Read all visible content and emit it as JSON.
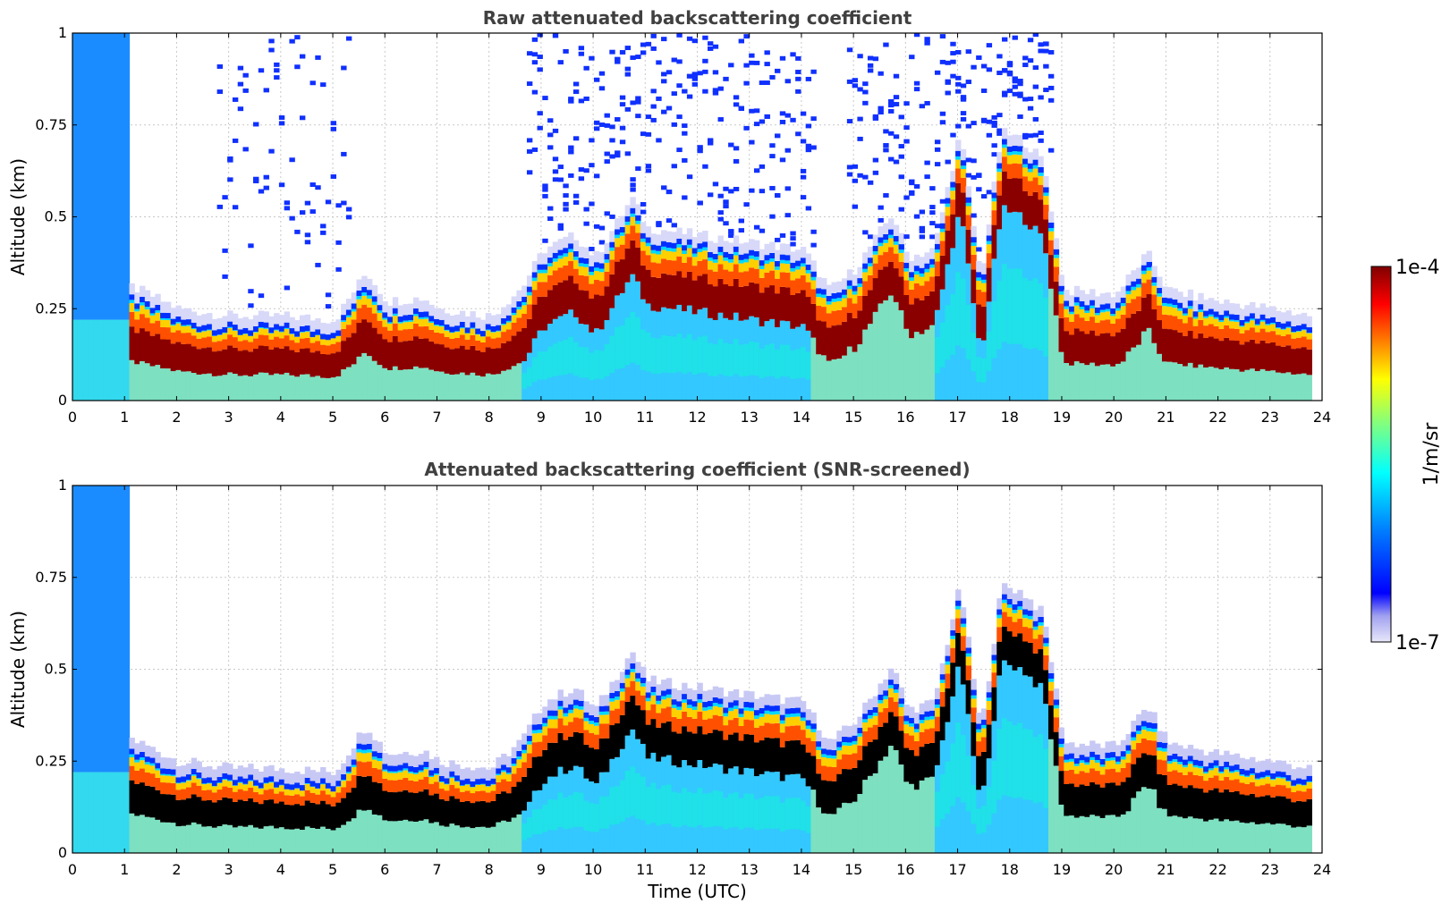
{
  "chart_data": [
    {
      "type": "heatmap",
      "title": "Raw attenuated backscattering coefficient",
      "xlabel": "",
      "ylabel": "Altitude (km)",
      "xlim": [
        0,
        24
      ],
      "ylim": [
        0,
        1
      ],
      "xticks": [
        "0",
        "1",
        "2",
        "3",
        "4",
        "5",
        "6",
        "7",
        "8",
        "9",
        "10",
        "11",
        "12",
        "13",
        "14",
        "15",
        "16",
        "17",
        "18",
        "19",
        "20",
        "21",
        "22",
        "23",
        "24"
      ],
      "yticks": [
        "0",
        "0.25",
        "0.5",
        "0.75",
        "1"
      ],
      "grid": true,
      "variant": "raw",
      "layer_top_km": {
        "time_utc": [
          0,
          1.1,
          2,
          3,
          4,
          5,
          5.6,
          6,
          6.7,
          7,
          8,
          8.6,
          9,
          9.6,
          10,
          10.7,
          11,
          12,
          13,
          14,
          14.5,
          15,
          15.7,
          16,
          16.5,
          17,
          17.4,
          17.8,
          18.2,
          18.6,
          19,
          20,
          20.6,
          21,
          22,
          23,
          23.8
        ],
        "altitude": [
          0.2,
          0.28,
          0.22,
          0.2,
          0.2,
          0.19,
          0.32,
          0.24,
          0.25,
          0.22,
          0.2,
          0.28,
          0.38,
          0.42,
          0.36,
          0.52,
          0.44,
          0.42,
          0.4,
          0.38,
          0.27,
          0.33,
          0.48,
          0.36,
          0.38,
          0.7,
          0.3,
          0.7,
          0.68,
          0.62,
          0.27,
          0.26,
          0.37,
          0.27,
          0.24,
          0.22,
          0.2
        ]
      }
    },
    {
      "type": "heatmap",
      "title": "Attenuated backscattering coefficient (SNR-screened)",
      "xlabel": "Time (UTC)",
      "ylabel": "Altitude (km)",
      "xlim": [
        0,
        24
      ],
      "ylim": [
        0,
        1
      ],
      "xticks": [
        "0",
        "1",
        "2",
        "3",
        "4",
        "5",
        "6",
        "7",
        "8",
        "9",
        "10",
        "11",
        "12",
        "13",
        "14",
        "15",
        "16",
        "17",
        "18",
        "19",
        "20",
        "21",
        "22",
        "23",
        "24"
      ],
      "yticks": [
        "0",
        "0.25",
        "0.5",
        "0.75",
        "1"
      ],
      "grid": true,
      "variant": "screened"
    }
  ],
  "colorbar": {
    "label": "1/m/sr",
    "min_label": "1e-7",
    "max_label": "1e-4",
    "colormap": [
      "#e8e8fa",
      "#c8c8f5",
      "#0000ff",
      "#0080ff",
      "#00ffff",
      "#80ff80",
      "#ffff00",
      "#ff8000",
      "#ff0000",
      "#800000"
    ]
  }
}
